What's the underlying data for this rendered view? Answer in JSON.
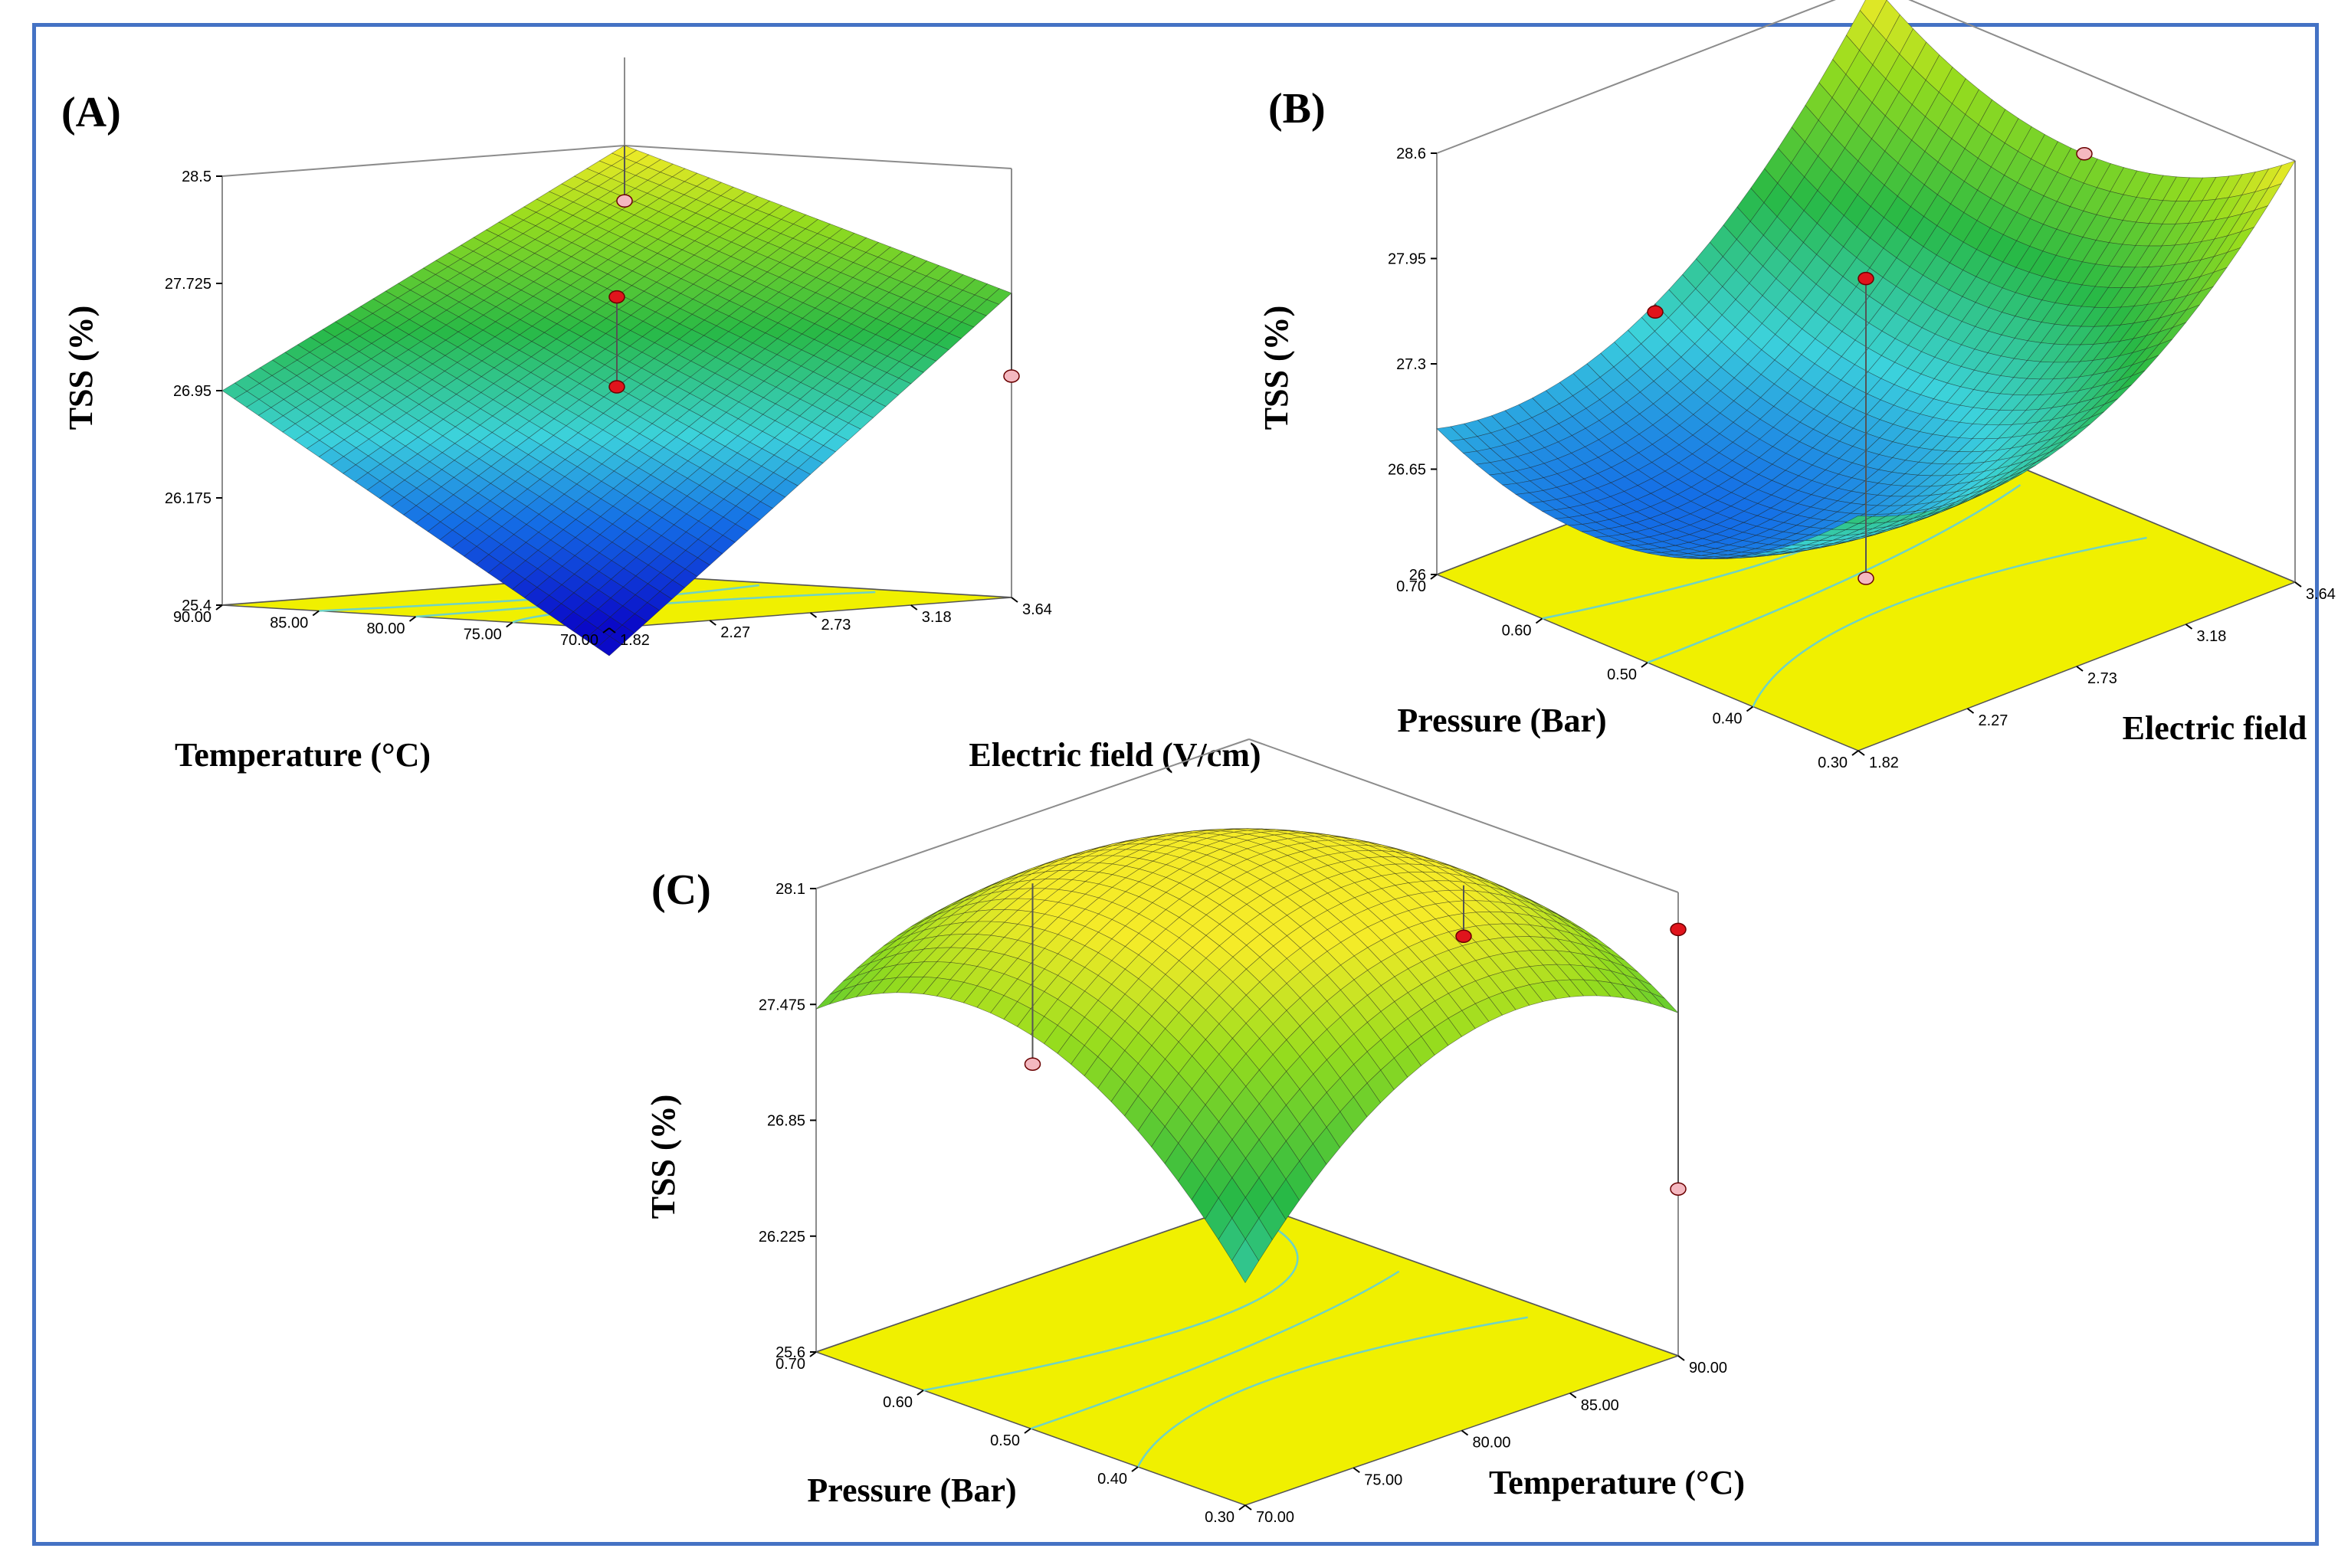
{
  "figure": {
    "background": "#ffffff",
    "frame_color": "#4472c4",
    "floor_color": "#f0f000",
    "contour_color": "#6fd3c4"
  },
  "chart_data": [
    {
      "id": "A",
      "type": "surface3d",
      "label": "(A)",
      "zlabel": "TSS (%)",
      "xlabel": "Temperature (°C)",
      "ylabel": "Electric field (V/cm)",
      "xlim": [
        70,
        90
      ],
      "ylim": [
        1.82,
        3.64
      ],
      "zlim": [
        25.4,
        28.5
      ],
      "x_ticks": [
        "70.00",
        "75.00",
        "80.00",
        "85.00",
        "90.00"
      ],
      "y_ticks": [
        "1.82",
        "2.27",
        "2.73",
        "3.18",
        "3.64"
      ],
      "z_ticks": [
        "25.4",
        "26.175",
        "26.95",
        "27.725",
        "28.5"
      ],
      "corner_values": {
        "x_min_y_min": 25.2,
        "x_max_y_min": 26.95,
        "x_min_y_max": 27.6,
        "x_max_y_max": 28.5
      },
      "interaction": 1.4,
      "x_curvature": 0.0,
      "y_curvature": 0.0,
      "design_points": [
        {
          "x": 80,
          "y": 2.73,
          "z": 27.6,
          "above": true
        },
        {
          "x": 80,
          "y": 2.73,
          "z": 26.95,
          "above": true
        },
        {
          "x": 70,
          "y": 3.64,
          "z": 27.0,
          "above": false
        },
        {
          "x": 90,
          "y": 3.64,
          "z": 28.1,
          "above": false
        }
      ]
    },
    {
      "id": "B",
      "type": "surface3d",
      "label": "(B)",
      "zlabel": "TSS (%)",
      "xlabel": "Pressure (Bar)",
      "ylabel": "Electric field",
      "xlim": [
        0.3,
        0.7
      ],
      "ylim": [
        1.82,
        3.64
      ],
      "zlim": [
        26,
        28.6
      ],
      "x_ticks": [
        "0.30",
        "0.40",
        "0.50",
        "0.60",
        "0.70"
      ],
      "y_ticks": [
        "1.82",
        "2.27",
        "2.73",
        "3.18",
        "3.64"
      ],
      "z_ticks": [
        "26",
        "26.65",
        "27.3",
        "27.95",
        "28.6"
      ],
      "corner_values": {
        "x_min_y_min": 27.45,
        "x_max_y_min": 26.9,
        "x_min_y_max": 28.6,
        "x_max_y_max": 28.6
      },
      "interaction": 0.0,
      "x_curvature": 0.5,
      "y_curvature": 0.6,
      "design_points": [
        {
          "x": 0.5,
          "y": 2.73,
          "z": 27.85,
          "above": true
        },
        {
          "x": 0.5,
          "y": 2.73,
          "z": 26.0,
          "above": false
        },
        {
          "x": 0.7,
          "y": 2.73,
          "z": 27.1,
          "above": true
        },
        {
          "x": 0.5,
          "y": 3.64,
          "z": 28.1,
          "above": false
        }
      ]
    },
    {
      "id": "C",
      "type": "surface3d",
      "label": "(C)",
      "zlabel": "TSS (%)",
      "xlabel": "Pressure (Bar)",
      "ylabel": "Temperature (°C)",
      "xlim": [
        0.3,
        0.7
      ],
      "ylim": [
        70,
        90
      ],
      "zlim": [
        25.6,
        28.1
      ],
      "x_ticks": [
        "0.30",
        "0.40",
        "0.50",
        "0.60",
        "0.70"
      ],
      "y_ticks": [
        "70.00",
        "75.00",
        "80.00",
        "85.00",
        "90.00"
      ],
      "z_ticks": [
        "25.6",
        "26.225",
        "26.85",
        "27.475",
        "28.1"
      ],
      "corner_values": {
        "x_min_y_min": 26.8,
        "x_max_y_min": 27.45,
        "x_min_y_max": 27.45,
        "x_max_y_max": 26.8
      },
      "interaction": 0.0,
      "x_curvature": -0.6,
      "y_curvature": -0.6,
      "design_points": [
        {
          "x": 0.3,
          "y": 90,
          "z": 27.9,
          "above": true
        },
        {
          "x": 0.3,
          "y": 90,
          "z": 26.5,
          "above": false
        },
        {
          "x": 0.7,
          "y": 80,
          "z": 26.75,
          "above": false
        },
        {
          "x": 0.5,
          "y": 90,
          "z": 27.45,
          "above": true
        }
      ]
    }
  ]
}
